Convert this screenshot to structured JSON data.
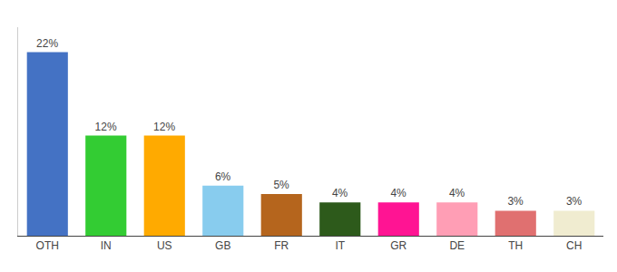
{
  "chart_data": {
    "type": "bar",
    "categories": [
      "OTH",
      "IN",
      "US",
      "GB",
      "FR",
      "IT",
      "GR",
      "DE",
      "TH",
      "CH"
    ],
    "values": [
      22,
      12,
      12,
      6,
      5,
      4,
      4,
      4,
      3,
      3
    ],
    "value_labels": [
      "22%",
      "12%",
      "12%",
      "6%",
      "5%",
      "4%",
      "4%",
      "4%",
      "3%",
      "3%"
    ],
    "colors": [
      "#4472c4",
      "#33cc33",
      "#ffaa00",
      "#88ccee",
      "#b5651d",
      "#2d5a1b",
      "#ff1493",
      "#ff9eb5",
      "#e07070",
      "#f0ecd0"
    ],
    "ylim": [
      0,
      25
    ],
    "data_labels": true,
    "tick_labels": "x",
    "grid": false
  }
}
